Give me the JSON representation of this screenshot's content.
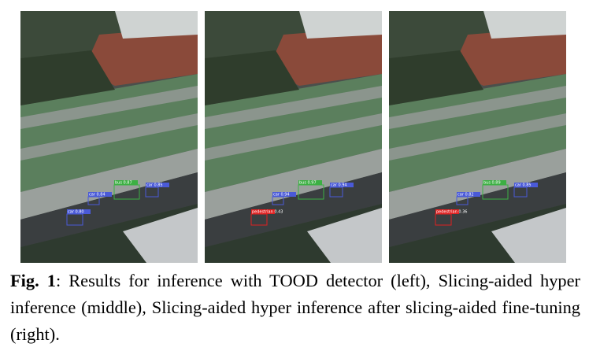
{
  "figure": {
    "panels": [
      {
        "detections": [
          "bus 0.87",
          "car 0.85",
          "car 0.84",
          "car 0.80"
        ]
      },
      {
        "detections": [
          "bus 0.97",
          "car 0.94",
          "car 0.94",
          "pedestrian 0.43"
        ]
      },
      {
        "detections": [
          "bus 0.89",
          "car 0.85",
          "car 0.82",
          "pedestrian 0.36"
        ]
      }
    ],
    "caption": {
      "label": "Fig. 1",
      "text": ":  Results for inference with TOOD detector (left), Slicing-aided hyper inference (middle), Slicing-aided hyper inference after slicing-aided fine-tuning (right)."
    }
  }
}
